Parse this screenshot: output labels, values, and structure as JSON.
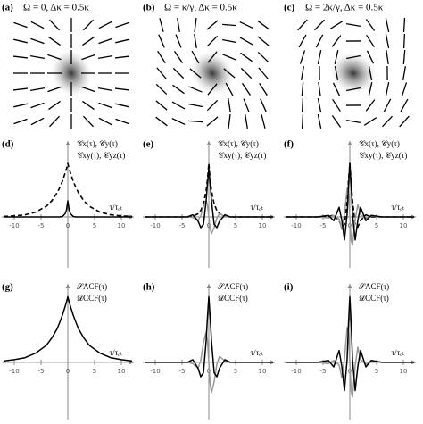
{
  "chart_data": [
    {
      "type": "field",
      "label": "(a)",
      "title": "Ω = 0, Δκ = 0.5κ"
    },
    {
      "type": "field",
      "label": "(b)",
      "title": "Ω = κ/γ, Δκ = 0.5κ"
    },
    {
      "type": "field",
      "label": "(c)",
      "title": "Ω = 2κ/γ, Δκ = 0.5κ"
    },
    {
      "type": "line",
      "label": "(d)",
      "legend": [
        "𝒞x(τ), 𝒞y(τ)",
        "𝒞xy(τ), 𝒞yz(τ)"
      ],
      "xlabel": "τ/τₒₜ",
      "x": [
        -12,
        -10,
        -8,
        -6,
        -4,
        -3,
        -2,
        -1.5,
        -1,
        -0.5,
        -0.25,
        0,
        0.25,
        0.5,
        1,
        1.5,
        2,
        3,
        4,
        6,
        8,
        10,
        12
      ],
      "xlim": [
        -12,
        12
      ],
      "xticks": [
        -10,
        -5,
        0,
        5,
        10
      ],
      "ylim": [
        -0.6,
        1.1
      ],
      "series": [
        {
          "color": "#000000",
          "dash": true,
          "values": [
            0.01,
            0.02,
            0.04,
            0.09,
            0.2,
            0.3,
            0.45,
            0.55,
            0.67,
            0.82,
            0.9,
            1,
            0.9,
            0.82,
            0.67,
            0.55,
            0.45,
            0.3,
            0.2,
            0.09,
            0.04,
            0.02,
            0.01
          ]
        },
        {
          "color": "#000000",
          "dash": false,
          "values": [
            0,
            0,
            0,
            0,
            0,
            0,
            0,
            0,
            0.01,
            0.06,
            0.13,
            0.3,
            0.13,
            0.06,
            0.01,
            0,
            0,
            0,
            0,
            0,
            0,
            0,
            0
          ]
        }
      ]
    },
    {
      "type": "line",
      "label": "(e)",
      "legend": [
        "𝒞x(τ), 𝒞y(τ)",
        "𝒞xy(τ), 𝒞yz(τ)"
      ],
      "xlabel": "τ/τₒₜ",
      "x": [
        -12,
        -10,
        -8,
        -6,
        -4,
        -3,
        -2,
        -1.5,
        -1,
        -0.5,
        -0.25,
        0,
        0.25,
        0.5,
        1,
        1.5,
        2,
        3,
        4,
        6,
        8,
        10,
        12
      ],
      "xlim": [
        -12,
        12
      ],
      "xticks": [
        -10,
        -5,
        0,
        5,
        10
      ],
      "ylim": [
        -0.6,
        1.1
      ],
      "series": [
        {
          "color": "#000000",
          "dash": true,
          "values": [
            0,
            0,
            0,
            0,
            0,
            0.01,
            0.06,
            0.12,
            0.24,
            0.49,
            0.7,
            1,
            0.7,
            0.49,
            0.24,
            0.12,
            0.06,
            0.01,
            0,
            0,
            0,
            0,
            0
          ]
        },
        {
          "color": "#999999",
          "dash": false,
          "values": [
            0,
            0,
            0,
            0,
            0,
            -0.01,
            -0.06,
            0.02,
            0.2,
            0.31,
            0.22,
            0,
            -0.22,
            -0.31,
            -0.2,
            -0.02,
            0.06,
            0.01,
            0,
            0,
            0,
            0,
            0
          ]
        },
        {
          "color": "#000000",
          "dash": false,
          "values": [
            0,
            0,
            0,
            0,
            0,
            0.04,
            -0.08,
            -0.2,
            -0.14,
            0.3,
            0.62,
            0.9,
            0.62,
            0.3,
            -0.14,
            -0.2,
            -0.08,
            0.04,
            0,
            0,
            0,
            0,
            0
          ]
        }
      ]
    },
    {
      "type": "line",
      "label": "(f)",
      "legend": [
        "𝒞x(τ), 𝒞y(τ)",
        "𝒞xy(τ), 𝒞yz(τ)"
      ],
      "xlabel": "τ/τₒₜ",
      "x": [
        -12,
        -10,
        -8,
        -6,
        -4,
        -3,
        -2,
        -1.5,
        -1,
        -0.5,
        -0.25,
        0,
        0.25,
        0.5,
        1,
        1.5,
        2,
        3,
        4,
        6,
        8,
        10,
        12
      ],
      "xlim": [
        -12,
        12
      ],
      "xticks": [
        -10,
        -5,
        0,
        5,
        10
      ],
      "ylim": [
        -0.6,
        1.1
      ],
      "series": [
        {
          "color": "#000000",
          "dash": true,
          "values": [
            0,
            0,
            0,
            0,
            0,
            0.04,
            -0.07,
            -0.19,
            -0.14,
            0.31,
            0.67,
            1,
            0.67,
            0.31,
            -0.14,
            -0.19,
            -0.07,
            0.04,
            0,
            0,
            0,
            0,
            0
          ]
        },
        {
          "color": "#999999",
          "dash": false,
          "values": [
            0,
            0,
            0,
            0,
            -0.02,
            0.03,
            -0.04,
            -0.23,
            0.05,
            0.53,
            0.44,
            0,
            -0.44,
            -0.53,
            -0.05,
            0.23,
            0.04,
            -0.03,
            0.02,
            0,
            0,
            0,
            0
          ]
        },
        {
          "color": "#000000",
          "dash": false,
          "values": [
            0,
            0,
            0,
            0,
            0.03,
            -0.07,
            0.18,
            -0.06,
            -0.43,
            0.05,
            0.59,
            1,
            0.59,
            0.05,
            -0.43,
            -0.06,
            0.18,
            -0.07,
            0.03,
            0,
            0,
            0,
            0
          ]
        }
      ]
    },
    {
      "type": "line",
      "label": "(g)",
      "legend": [
        "𝒮ACF(τ)",
        "𝒟CCF(τ)"
      ],
      "xlabel": "τ/τₒₜ",
      "x": [
        -12,
        -10,
        -8,
        -6,
        -4,
        -3,
        -2,
        -1.5,
        -1,
        -0.5,
        -0.25,
        0,
        0.25,
        0.5,
        1,
        1.5,
        2,
        3,
        4,
        6,
        8,
        10,
        12
      ],
      "xlim": [
        -12,
        12
      ],
      "xticks": [
        -10,
        -5,
        0,
        5,
        10
      ],
      "ylim": [
        -0.6,
        1.1
      ],
      "series": [
        {
          "color": "#000000",
          "dash": false,
          "values": [
            0.02,
            0.04,
            0.07,
            0.14,
            0.26,
            0.37,
            0.51,
            0.61,
            0.72,
            0.85,
            0.92,
            1,
            0.92,
            0.85,
            0.72,
            0.61,
            0.51,
            0.37,
            0.26,
            0.14,
            0.07,
            0.04,
            0.02
          ]
        }
      ]
    },
    {
      "type": "line",
      "label": "(h)",
      "legend": [
        "𝒮ACF(τ)",
        "𝒟CCF(τ)"
      ],
      "xlabel": "τ/τₒₜ",
      "x": [
        -12,
        -10,
        -8,
        -6,
        -4,
        -3,
        -2,
        -1.5,
        -1,
        -0.5,
        -0.25,
        0,
        0.25,
        0.5,
        1,
        1.5,
        2,
        3,
        4,
        6,
        8,
        10,
        12
      ],
      "xlim": [
        -12,
        12
      ],
      "xticks": [
        -10,
        -5,
        0,
        5,
        10
      ],
      "ylim": [
        -0.6,
        1.1
      ],
      "series": [
        {
          "color": "#999999",
          "dash": false,
          "values": [
            0,
            0,
            0,
            0,
            0,
            -0.02,
            -0.09,
            0.03,
            0.3,
            0.46,
            0.33,
            0,
            -0.33,
            -0.46,
            -0.3,
            -0.03,
            0.09,
            0.02,
            0,
            0,
            0,
            0,
            0
          ]
        },
        {
          "color": "#000000",
          "dash": false,
          "values": [
            0,
            0,
            0,
            0,
            0,
            0.04,
            -0.09,
            -0.22,
            -0.16,
            0.33,
            0.69,
            1,
            0.69,
            0.33,
            -0.16,
            -0.22,
            -0.09,
            0.04,
            0,
            0,
            0,
            0,
            0
          ]
        }
      ]
    },
    {
      "type": "line",
      "label": "(i)",
      "legend": [
        "𝒮ACF(τ)",
        "𝒟CCF(τ)"
      ],
      "xlabel": "τ/τₒₜ",
      "x": [
        -12,
        -10,
        -8,
        -6,
        -4,
        -3,
        -2,
        -1.5,
        -1,
        -0.5,
        -0.25,
        0,
        0.25,
        0.5,
        1,
        1.5,
        2,
        3,
        4,
        6,
        8,
        10,
        12
      ],
      "xlim": [
        -12,
        12
      ],
      "xticks": [
        -10,
        -5,
        0,
        5,
        10
      ],
      "ylim": [
        -0.6,
        1.1
      ],
      "series": [
        {
          "color": "#999999",
          "dash": false,
          "values": [
            0,
            0,
            0,
            0,
            -0.02,
            0.03,
            -0.04,
            -0.23,
            0.05,
            0.53,
            0.44,
            0,
            -0.44,
            -0.53,
            -0.05,
            0.23,
            0.04,
            -0.03,
            0.02,
            0,
            0,
            0,
            0
          ]
        },
        {
          "color": "#000000",
          "dash": false,
          "values": [
            0,
            0,
            0,
            0,
            0.03,
            -0.07,
            0.18,
            -0.06,
            -0.43,
            0.05,
            0.59,
            1,
            0.59,
            0.05,
            -0.43,
            -0.06,
            0.18,
            -0.07,
            0.03,
            0,
            0,
            0,
            0
          ]
        }
      ]
    }
  ]
}
